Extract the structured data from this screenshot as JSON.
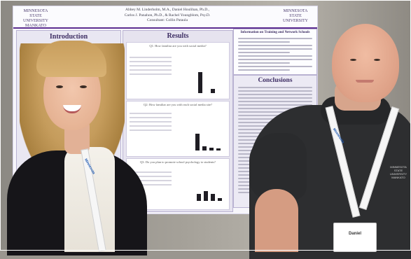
{
  "poster": {
    "logo_left": "MINNESOTA STATE UNIVERSITY MANKATO",
    "logo_right": "MINNESOTA STATE UNIVERSITY",
    "authors_line1": "Abbey M. Linderholm, M.A., Daniel Houlihan, Ph.D.,",
    "authors_line2": "Carlos J. Panahon, Ph.D., & Rachel Youngblom, Psy.D.",
    "authors_line3": "Consultant: Collin Pataula",
    "sections": {
      "intro": "Introduction",
      "results": "Results",
      "conclusions": "Conclusions",
      "info": "Information on Training and Network Schools"
    },
    "result_questions": [
      "Q1: How familiar are you with social media?",
      "Q2: How familiar are you with each social media site?",
      "Q3: Do you plan to promote school psychology to students?"
    ]
  },
  "badges": {
    "woman_lanyard": "Minnesota",
    "man_lanyard": "Minnesota",
    "man_name": "Daniel"
  },
  "shirt_logo": "MINNESOTA STATE UNIVERSITY MANKATO",
  "colors": {
    "poster_accent": "#5c2e91",
    "lanyard_text": "#1a56b0"
  }
}
